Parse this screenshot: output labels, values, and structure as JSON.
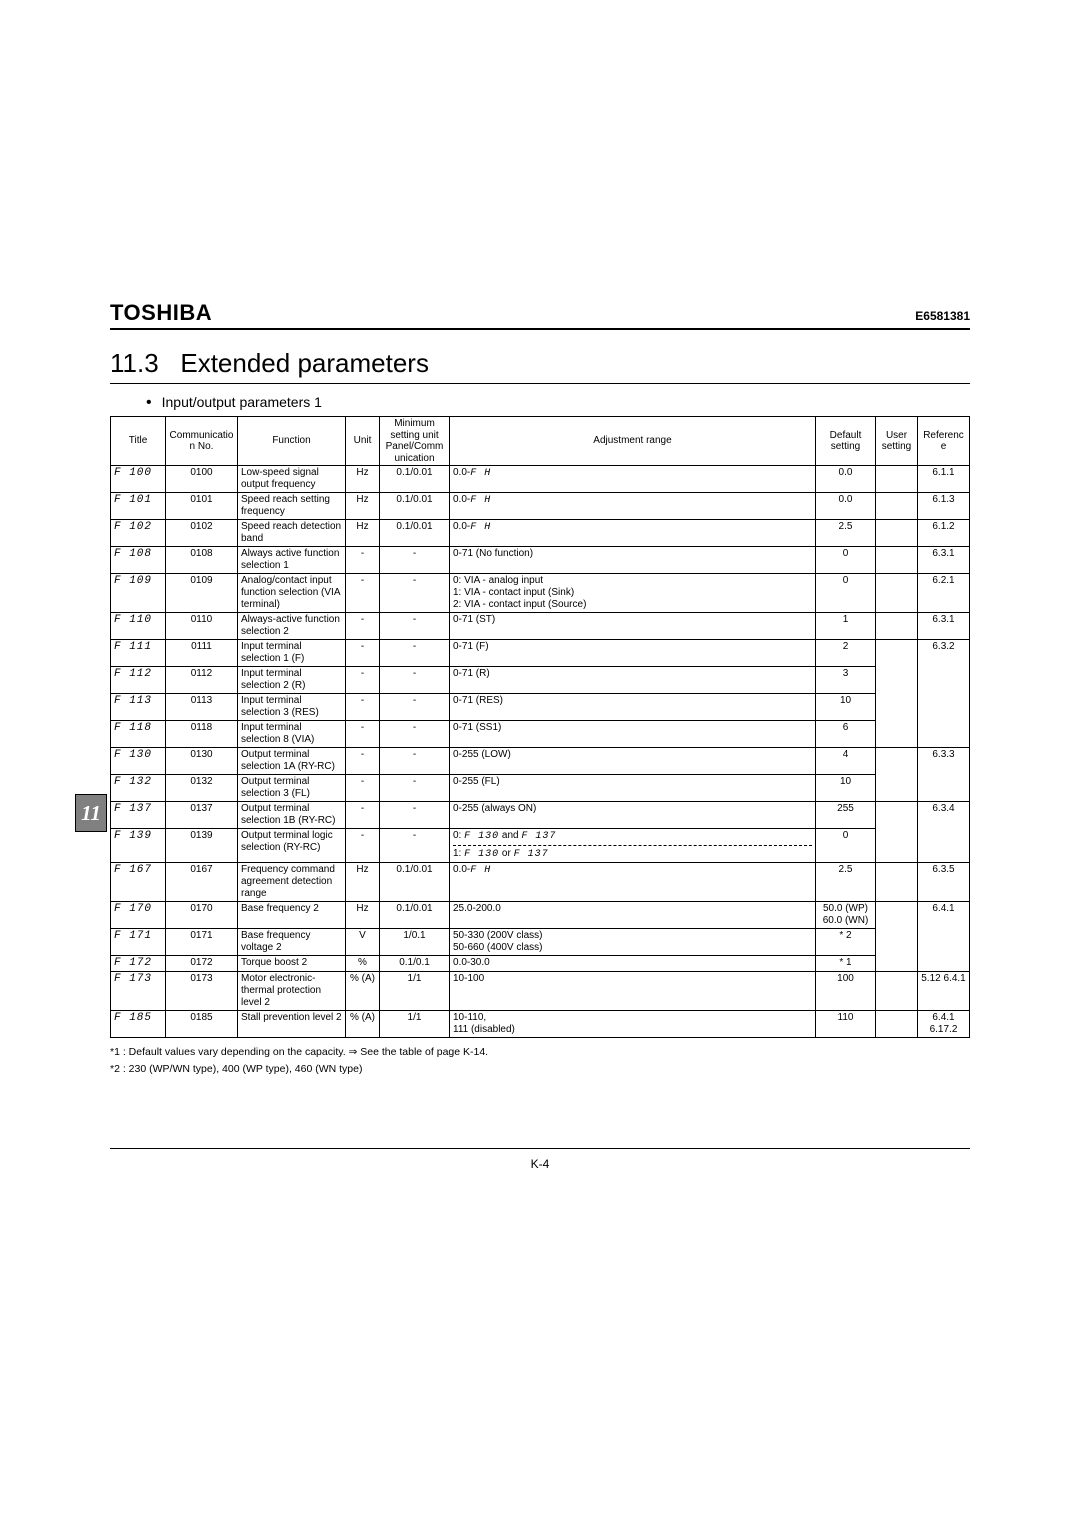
{
  "doc": {
    "brand": "TOSHIBA",
    "docnum": "E6581381",
    "section_no": "11.3",
    "section_title": "Extended parameters",
    "subtitle": "Input/output parameters 1",
    "tab_number": "11",
    "pagenum": "K-4",
    "note1": "*1 : Default values vary depending on the capacity.  ⇒ See the table of page K-14.",
    "note2": "*2 : 230 (WP/WN type), 400 (WP type), 460 (WN type)"
  },
  "hdr": {
    "title": "Title",
    "comm": "Communication No.",
    "func": "Function",
    "unit": "Unit",
    "min": "Minimum setting unit Panel/Communication",
    "adj": "Adjustment range",
    "def": "Default setting",
    "user": "User setting",
    "ref": "Reference"
  },
  "r": [
    {
      "t": "F 100",
      "c": "0100",
      "f": "Low-speed signal output frequency",
      "u": "Hz",
      "m": "0.1/0.01",
      "a": "0.0-F H",
      "d": "0.0",
      "ref": "6.1.1"
    },
    {
      "t": "F 101",
      "c": "0101",
      "f": "Speed reach setting frequency",
      "u": "Hz",
      "m": "0.1/0.01",
      "a": "0.0-F H",
      "d": "0.0",
      "ref": "6.1.3"
    },
    {
      "t": "F 102",
      "c": "0102",
      "f": "Speed reach detection band",
      "u": "Hz",
      "m": "0.1/0.01",
      "a": "0.0-F H",
      "d": "2.5",
      "ref": "6.1.2"
    },
    {
      "t": "F 108",
      "c": "0108",
      "f": "Always active function selection 1",
      "u": "-",
      "m": "-",
      "a": "0-71 (No function)",
      "d": "0",
      "ref": "6.3.1"
    },
    {
      "t": "F 109",
      "c": "0109",
      "f": "Analog/contact input function selection (VIA terminal)",
      "u": "-",
      "m": "-",
      "a": "0: VIA - analog input\n1: VIA - contact input (Sink)\n2: VIA - contact input (Source)",
      "d": "0",
      "ref": "6.2.1"
    },
    {
      "t": "F 110",
      "c": "0110",
      "f": "Always-active function selection 2",
      "u": "-",
      "m": "-",
      "a": "0-71 (ST)",
      "d": "1",
      "ref": "6.3.1"
    },
    {
      "t": "F 111",
      "c": "0111",
      "f": "Input terminal selection 1 (F)",
      "u": "-",
      "m": "-",
      "a": "0-71 (F)",
      "d": "2",
      "ref": "6.3.2"
    },
    {
      "t": "F 112",
      "c": "0112",
      "f": "Input terminal selection 2 (R)",
      "u": "-",
      "m": "-",
      "a": "0-71 (R)",
      "d": "3",
      "ref": ""
    },
    {
      "t": "F 113",
      "c": "0113",
      "f": "Input terminal selection 3 (RES)",
      "u": "-",
      "m": "-",
      "a": "0-71 (RES)",
      "d": "10",
      "ref": ""
    },
    {
      "t": "F 118",
      "c": "0118",
      "f": "Input terminal selection 8 (VIA)",
      "u": "-",
      "m": "-",
      "a": "0-71 (SS1)",
      "d": "6",
      "ref": ""
    },
    {
      "t": "F 130",
      "c": "0130",
      "f": "Output terminal selection 1A (RY-RC)",
      "u": "-",
      "m": "-",
      "a": "0-255 (LOW)",
      "d": "4",
      "ref": "6.3.3"
    },
    {
      "t": "F 132",
      "c": "0132",
      "f": "Output terminal selection 3 (FL)",
      "u": "-",
      "m": "-",
      "a": "0-255 (FL)",
      "d": "10",
      "ref": ""
    },
    {
      "t": "F 137",
      "c": "0137",
      "f": "Output terminal selection 1B (RY-RC)",
      "u": "-",
      "m": "-",
      "a": "0-255 (always ON)",
      "d": "255",
      "ref": "6.3.4"
    },
    {
      "t": "F 139",
      "c": "0139",
      "f": "Output terminal logic selection (RY-RC)",
      "u": "-",
      "m": "-",
      "a": "",
      "d": "0",
      "ref": ""
    },
    {
      "t": "F 167",
      "c": "0167",
      "f": "Frequency command agreement detection range",
      "u": "Hz",
      "m": "0.1/0.01",
      "a": "0.0-F H",
      "d": "2.5",
      "ref": "6.3.5"
    },
    {
      "t": "F 170",
      "c": "0170",
      "f": "Base frequency 2",
      "u": "Hz",
      "m": "0.1/0.01",
      "a": "25.0-200.0",
      "d": "50.0 (WP) 60.0 (WN)",
      "ref": "6.4.1"
    },
    {
      "t": "F 171",
      "c": "0171",
      "f": "Base frequency voltage 2",
      "u": "V",
      "m": "1/0.1",
      "a": "50-330 (200V class)\n50-660 (400V class)",
      "d": "* 2",
      "ref": ""
    },
    {
      "t": "F 172",
      "c": "0172",
      "f": "Torque boost 2",
      "u": "%",
      "m": "0.1/0.1",
      "a": "0.0-30.0",
      "d": "* 1",
      "ref": ""
    },
    {
      "t": "F 173",
      "c": "0173",
      "f": "Motor electronic-thermal protection level 2",
      "u": "% (A)",
      "m": "1/1",
      "a": "10-100",
      "d": "100",
      "ref": "5.12 6.4.1"
    },
    {
      "t": "F 185",
      "c": "0185",
      "f": "Stall prevention level 2",
      "u": "% (A)",
      "m": "1/1",
      "a": "10-110,\n111 (disabled)",
      "d": "110",
      "ref": "6.4.1 6.17.2"
    }
  ],
  "f139": {
    "line1": "0: F 130 and F 137",
    "line2": "1: F 130 or F 137"
  }
}
